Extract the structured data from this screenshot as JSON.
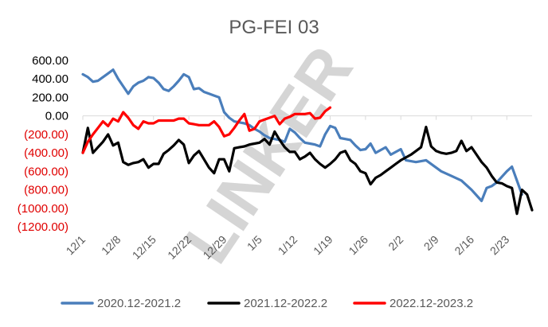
{
  "chart_data": {
    "type": "line",
    "title": "PG-FEI 03",
    "xlabel": "",
    "ylabel": "",
    "ylim": [
      -1200,
      600
    ],
    "y_ticks": [
      600,
      400,
      200,
      0,
      -200,
      -400,
      -600,
      -800,
      -1000,
      -1200
    ],
    "y_tick_labels": [
      "600.00",
      "400.00",
      "200.00",
      "0.00",
      "(200.00)",
      "(400.00)",
      "(600.00)",
      "(800.00)",
      "(1000.00)",
      "(1200.00)"
    ],
    "negative_tick_color": "#e00000",
    "x_tick_labels": [
      "12/1",
      "12/8",
      "12/15",
      "12/22",
      "12/29",
      "1/5",
      "1/12",
      "1/19",
      "1/26",
      "2/2",
      "2/9",
      "2/16",
      "2/23"
    ],
    "x_range_days": [
      0,
      89
    ],
    "grid": false,
    "legend_position": "bottom",
    "watermark": "LINKER",
    "series": [
      {
        "name": "2020.12-2021.2",
        "color": "#4a7ebb",
        "x": [
          0,
          1,
          2,
          3,
          4,
          5,
          6,
          7,
          8,
          9,
          10,
          11,
          12,
          13,
          14,
          15,
          16,
          17,
          18,
          19,
          20,
          21,
          22,
          23,
          24,
          25,
          26,
          27,
          28,
          29,
          30,
          31,
          32,
          33,
          34,
          35,
          36,
          37,
          38,
          39,
          40,
          41,
          42,
          43,
          44,
          45,
          46,
          47,
          48,
          49,
          50,
          51,
          52,
          53,
          54,
          55,
          56,
          57,
          58,
          60,
          61,
          63,
          64,
          66,
          67,
          68,
          70,
          71,
          73,
          75,
          77,
          79,
          80,
          81,
          82,
          84,
          85,
          86,
          87
        ],
        "values": [
          450,
          420,
          370,
          380,
          420,
          460,
          500,
          400,
          320,
          240,
          320,
          360,
          380,
          420,
          410,
          360,
          290,
          270,
          320,
          380,
          450,
          420,
          290,
          300,
          260,
          240,
          220,
          200,
          40,
          -20,
          -60,
          -70,
          -80,
          -100,
          -140,
          -170,
          -210,
          -240,
          -250,
          -260,
          -280,
          -140,
          -180,
          -240,
          -290,
          -300,
          -310,
          -330,
          -200,
          -110,
          -130,
          -240,
          -250,
          -260,
          -320,
          -370,
          -360,
          -300,
          -400,
          -340,
          -420,
          -360,
          -480,
          -500,
          -490,
          -480,
          -560,
          -600,
          -650,
          -700,
          -800,
          -920,
          -780,
          -760,
          -720,
          -600,
          -550,
          -700,
          -850
        ]
      },
      {
        "name": "2021.12-2022.2",
        "color": "#000000",
        "x": [
          0,
          1,
          2,
          3,
          4,
          5,
          6,
          7,
          8,
          9,
          10,
          11,
          12,
          13,
          14,
          15,
          16,
          17,
          18,
          19,
          20,
          21,
          22,
          23,
          24,
          25,
          26,
          27,
          28,
          29,
          30,
          31,
          32,
          33,
          34,
          35,
          36,
          37,
          38,
          39,
          40,
          41,
          42,
          43,
          44,
          45,
          46,
          47,
          48,
          49,
          50,
          51,
          52,
          53,
          54,
          55,
          56,
          57,
          58,
          59,
          60,
          61,
          62,
          63,
          64,
          65,
          66,
          67,
          68,
          69,
          70,
          71,
          72,
          73,
          74,
          75,
          76,
          77,
          78,
          79,
          80,
          81,
          82,
          83,
          84,
          85,
          86,
          87,
          88,
          89
        ],
        "values": [
          -400,
          -130,
          -400,
          -340,
          -280,
          -200,
          -320,
          -290,
          -500,
          -530,
          -510,
          -500,
          -470,
          -560,
          -520,
          -520,
          -410,
          -370,
          -320,
          -260,
          -310,
          -510,
          -430,
          -380,
          -470,
          -560,
          -620,
          -470,
          -470,
          -600,
          -350,
          -340,
          -330,
          -310,
          -300,
          -290,
          -250,
          -310,
          -170,
          -260,
          -340,
          -390,
          -390,
          -470,
          -440,
          -400,
          -470,
          -520,
          -560,
          -520,
          -470,
          -400,
          -380,
          -480,
          -520,
          -600,
          -620,
          -740,
          -670,
          -640,
          -600,
          -560,
          -520,
          -480,
          -450,
          -420,
          -380,
          -340,
          -120,
          -330,
          -380,
          -400,
          -410,
          -400,
          -380,
          -270,
          -380,
          -340,
          -420,
          -500,
          -560,
          -650,
          -720,
          -730,
          -760,
          -780,
          -1060,
          -800,
          -850,
          -1020
        ]
      },
      {
        "name": "2022.12-2023.2",
        "color": "#ff0000",
        "x": [
          0,
          1,
          2,
          3,
          4,
          5,
          6,
          7,
          8,
          9,
          10,
          11,
          12,
          13,
          14,
          15,
          16,
          17,
          18,
          19,
          20,
          21,
          22,
          23,
          24,
          25,
          26,
          27,
          28,
          29,
          30,
          31,
          32,
          33,
          34,
          35,
          36,
          37,
          38,
          39,
          40,
          41,
          42,
          43,
          44,
          45,
          46,
          47,
          48,
          49
        ],
        "values": [
          -400,
          -280,
          -200,
          -130,
          -60,
          -110,
          -30,
          -60,
          40,
          -20,
          -100,
          -140,
          -60,
          -80,
          -80,
          -50,
          -50,
          -50,
          -50,
          -30,
          -30,
          -80,
          -90,
          -100,
          -100,
          -100,
          -60,
          -120,
          -220,
          -200,
          -130,
          -50,
          20,
          -160,
          -140,
          -60,
          -40,
          -20,
          0,
          -90,
          -30,
          -10,
          20,
          20,
          20,
          30,
          -30,
          -20,
          50,
          90
        ]
      }
    ]
  }
}
